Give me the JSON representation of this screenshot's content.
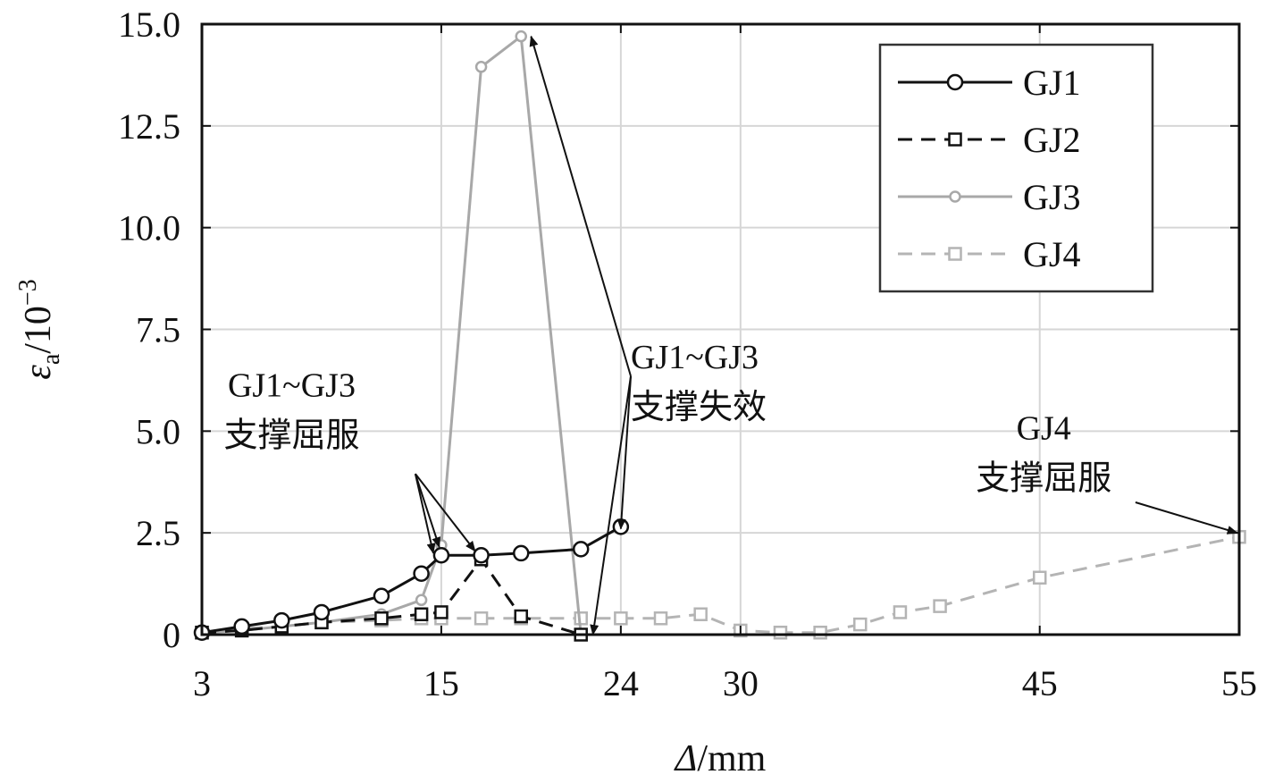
{
  "chart_data": {
    "type": "line",
    "xlabel": "Δ/mm",
    "ylabel": "εa/10⁻³",
    "ylabel_parts": {
      "main": "ε",
      "sub": "a",
      "rest": "/10",
      "sup": "−3"
    },
    "xlabel_parts": {
      "main": "Δ",
      "rest": "/mm"
    },
    "xlim": [
      3,
      55
    ],
    "ylim": [
      0,
      15
    ],
    "x_ticks": [
      3,
      15,
      24,
      30,
      45,
      55
    ],
    "x_tick_labels": [
      "3",
      "15",
      "24",
      "30",
      "45",
      "55"
    ],
    "y_ticks": [
      0,
      2.5,
      5,
      7.5,
      10,
      12.5,
      15
    ],
    "y_tick_labels": [
      "0",
      "2.5",
      "5.0",
      "7.5",
      "10.0",
      "12.5",
      "15.0"
    ],
    "grid": true,
    "legend_position": "top-right",
    "series": [
      {
        "name": "GJ1",
        "color": "#111111",
        "dash": "solid",
        "marker": "circle",
        "x": [
          3,
          5,
          7,
          9,
          12,
          14,
          15,
          17,
          19,
          22,
          24
        ],
        "y": [
          0.05,
          0.2,
          0.35,
          0.55,
          0.95,
          1.5,
          1.95,
          1.95,
          2.0,
          2.1,
          2.65
        ]
      },
      {
        "name": "GJ2",
        "color": "#111111",
        "dash": "dashed",
        "marker": "square",
        "x": [
          3,
          5,
          7,
          9,
          12,
          14,
          15,
          17,
          19,
          22
        ],
        "y": [
          0.05,
          0.1,
          0.2,
          0.3,
          0.4,
          0.5,
          0.55,
          1.85,
          0.45,
          0.0
        ]
      },
      {
        "name": "GJ3",
        "color": "#a8a8a8",
        "dash": "solid",
        "marker": "diamond",
        "x": [
          3,
          5,
          7,
          9,
          12,
          14,
          15,
          17,
          19,
          22
        ],
        "y": [
          0.05,
          0.1,
          0.2,
          0.3,
          0.5,
          0.85,
          2.2,
          13.95,
          14.7,
          0.0
        ]
      },
      {
        "name": "GJ4",
        "color": "#b4b4b4",
        "dash": "dashed",
        "marker": "square",
        "x": [
          3,
          5,
          7,
          9,
          12,
          14,
          15,
          17,
          19,
          22,
          24,
          26,
          28,
          30,
          32,
          34,
          36,
          38,
          40,
          45,
          55
        ],
        "y": [
          0.05,
          0.15,
          0.2,
          0.3,
          0.35,
          0.4,
          0.4,
          0.4,
          0.4,
          0.4,
          0.4,
          0.4,
          0.5,
          0.1,
          0.05,
          0.05,
          0.25,
          0.55,
          0.7,
          1.4,
          2.4
        ]
      }
    ],
    "annotations": [
      {
        "lines": [
          "GJ1~GJ3",
          "支撑屈服"
        ],
        "text_at": [
          7.5,
          5.85
        ],
        "anchor": "middle",
        "origin": [
          13.7,
          3.95
        ],
        "targets": [
          [
            14.6,
            2.0
          ],
          [
            14.9,
            2.15
          ],
          [
            16.7,
            2.05
          ]
        ]
      },
      {
        "lines": [
          "GJ1~GJ3",
          "支撑失效"
        ],
        "text_at": [
          24.5,
          6.55
        ],
        "anchor": "start",
        "origin": [
          24.5,
          6.35
        ],
        "targets": [
          [
            19.5,
            14.7
          ],
          [
            24.0,
            2.6
          ],
          [
            22.6,
            0.0
          ]
        ]
      },
      {
        "lines": [
          "GJ4",
          "支撑屈服"
        ],
        "text_at": [
          45.2,
          4.8
        ],
        "anchor": "middle",
        "origin": [
          49.8,
          3.25
        ],
        "targets": [
          [
            54.9,
            2.5
          ]
        ]
      }
    ]
  }
}
